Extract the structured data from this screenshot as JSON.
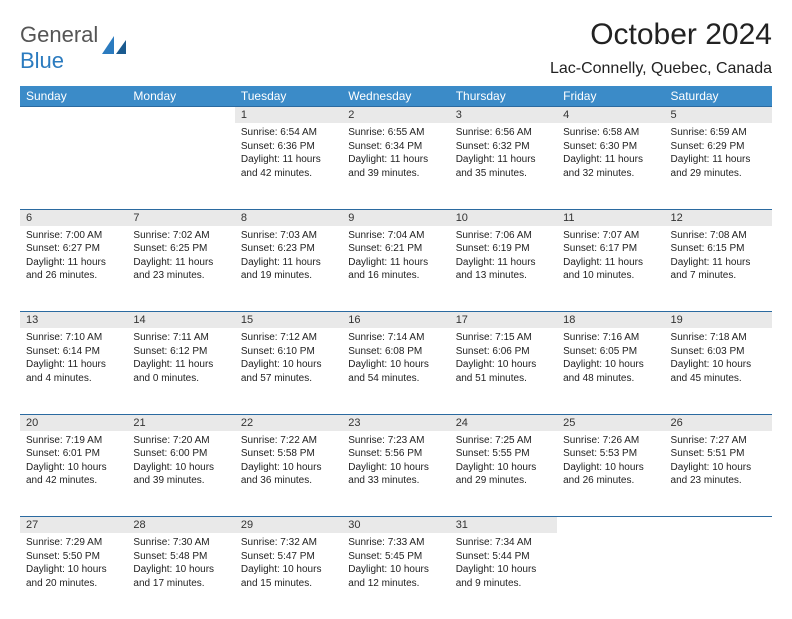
{
  "logo": {
    "word1": "General",
    "word2": "Blue"
  },
  "title": "October 2024",
  "location": "Lac-Connelly, Quebec, Canada",
  "colors": {
    "header_bg": "#3b8bc8",
    "header_text": "#ffffff",
    "daynum_bg": "#e9e9e9",
    "row_border": "#2b6aa0",
    "logo_gray": "#555555",
    "logo_blue": "#2b7bbf"
  },
  "weekdays": [
    "Sunday",
    "Monday",
    "Tuesday",
    "Wednesday",
    "Thursday",
    "Friday",
    "Saturday"
  ],
  "weeks": [
    {
      "nums": [
        "",
        "",
        "1",
        "2",
        "3",
        "4",
        "5"
      ],
      "cells": [
        null,
        null,
        {
          "sunrise": "6:54 AM",
          "sunset": "6:36 PM",
          "day_h": "11",
          "day_m": "42"
        },
        {
          "sunrise": "6:55 AM",
          "sunset": "6:34 PM",
          "day_h": "11",
          "day_m": "39"
        },
        {
          "sunrise": "6:56 AM",
          "sunset": "6:32 PM",
          "day_h": "11",
          "day_m": "35"
        },
        {
          "sunrise": "6:58 AM",
          "sunset": "6:30 PM",
          "day_h": "11",
          "day_m": "32"
        },
        {
          "sunrise": "6:59 AM",
          "sunset": "6:29 PM",
          "day_h": "11",
          "day_m": "29"
        }
      ]
    },
    {
      "nums": [
        "6",
        "7",
        "8",
        "9",
        "10",
        "11",
        "12"
      ],
      "cells": [
        {
          "sunrise": "7:00 AM",
          "sunset": "6:27 PM",
          "day_h": "11",
          "day_m": "26"
        },
        {
          "sunrise": "7:02 AM",
          "sunset": "6:25 PM",
          "day_h": "11",
          "day_m": "23"
        },
        {
          "sunrise": "7:03 AM",
          "sunset": "6:23 PM",
          "day_h": "11",
          "day_m": "19"
        },
        {
          "sunrise": "7:04 AM",
          "sunset": "6:21 PM",
          "day_h": "11",
          "day_m": "16"
        },
        {
          "sunrise": "7:06 AM",
          "sunset": "6:19 PM",
          "day_h": "11",
          "day_m": "13"
        },
        {
          "sunrise": "7:07 AM",
          "sunset": "6:17 PM",
          "day_h": "11",
          "day_m": "10"
        },
        {
          "sunrise": "7:08 AM",
          "sunset": "6:15 PM",
          "day_h": "11",
          "day_m": "7"
        }
      ]
    },
    {
      "nums": [
        "13",
        "14",
        "15",
        "16",
        "17",
        "18",
        "19"
      ],
      "cells": [
        {
          "sunrise": "7:10 AM",
          "sunset": "6:14 PM",
          "day_h": "11",
          "day_m": "4"
        },
        {
          "sunrise": "7:11 AM",
          "sunset": "6:12 PM",
          "day_h": "11",
          "day_m": "0"
        },
        {
          "sunrise": "7:12 AM",
          "sunset": "6:10 PM",
          "day_h": "10",
          "day_m": "57"
        },
        {
          "sunrise": "7:14 AM",
          "sunset": "6:08 PM",
          "day_h": "10",
          "day_m": "54"
        },
        {
          "sunrise": "7:15 AM",
          "sunset": "6:06 PM",
          "day_h": "10",
          "day_m": "51"
        },
        {
          "sunrise": "7:16 AM",
          "sunset": "6:05 PM",
          "day_h": "10",
          "day_m": "48"
        },
        {
          "sunrise": "7:18 AM",
          "sunset": "6:03 PM",
          "day_h": "10",
          "day_m": "45"
        }
      ]
    },
    {
      "nums": [
        "20",
        "21",
        "22",
        "23",
        "24",
        "25",
        "26"
      ],
      "cells": [
        {
          "sunrise": "7:19 AM",
          "sunset": "6:01 PM",
          "day_h": "10",
          "day_m": "42"
        },
        {
          "sunrise": "7:20 AM",
          "sunset": "6:00 PM",
          "day_h": "10",
          "day_m": "39"
        },
        {
          "sunrise": "7:22 AM",
          "sunset": "5:58 PM",
          "day_h": "10",
          "day_m": "36"
        },
        {
          "sunrise": "7:23 AM",
          "sunset": "5:56 PM",
          "day_h": "10",
          "day_m": "33"
        },
        {
          "sunrise": "7:25 AM",
          "sunset": "5:55 PM",
          "day_h": "10",
          "day_m": "29"
        },
        {
          "sunrise": "7:26 AM",
          "sunset": "5:53 PM",
          "day_h": "10",
          "day_m": "26"
        },
        {
          "sunrise": "7:27 AM",
          "sunset": "5:51 PM",
          "day_h": "10",
          "day_m": "23"
        }
      ]
    },
    {
      "nums": [
        "27",
        "28",
        "29",
        "30",
        "31",
        "",
        ""
      ],
      "cells": [
        {
          "sunrise": "7:29 AM",
          "sunset": "5:50 PM",
          "day_h": "10",
          "day_m": "20"
        },
        {
          "sunrise": "7:30 AM",
          "sunset": "5:48 PM",
          "day_h": "10",
          "day_m": "17"
        },
        {
          "sunrise": "7:32 AM",
          "sunset": "5:47 PM",
          "day_h": "10",
          "day_m": "15"
        },
        {
          "sunrise": "7:33 AM",
          "sunset": "5:45 PM",
          "day_h": "10",
          "day_m": "12"
        },
        {
          "sunrise": "7:34 AM",
          "sunset": "5:44 PM",
          "day_h": "10",
          "day_m": "9"
        },
        null,
        null
      ]
    }
  ],
  "labels": {
    "sunrise": "Sunrise:",
    "sunset": "Sunset:",
    "daylight": "Daylight:",
    "hours": "hours",
    "and": "and",
    "minutes": "minutes."
  }
}
